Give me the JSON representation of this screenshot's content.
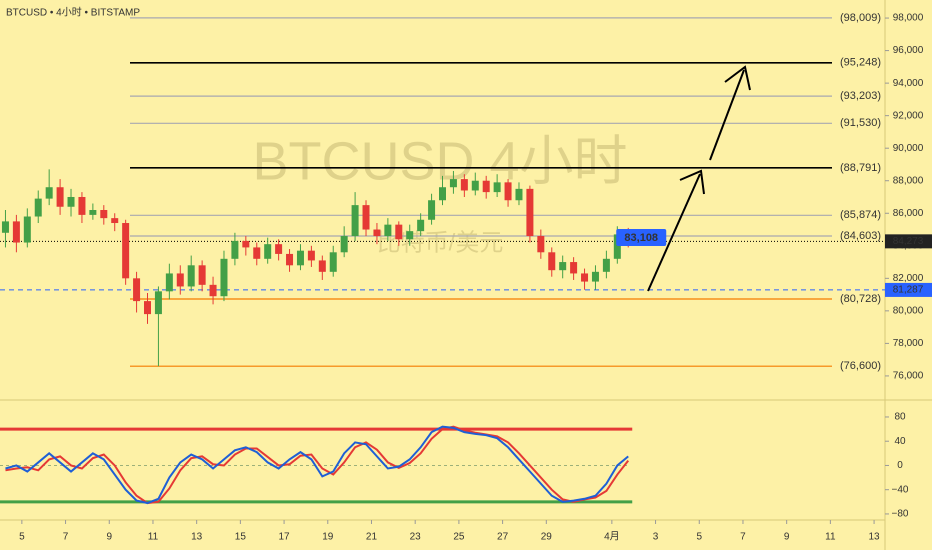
{
  "chart_data": [
    {
      "type": "candlestick",
      "title": "BTCUSD • 4小时 • BITSTAMP",
      "watermark": "BTCUSD 4小时",
      "watermark_sub": "比特币/美元",
      "up_color": "#43a047",
      "down_color": "#e53935",
      "xlim": [
        4,
        44.5
      ],
      "ylim": [
        74520,
        99110
      ],
      "yticks": [
        {
          "value": 76000,
          "label": "76,000"
        },
        {
          "value": 78000,
          "label": "78,000"
        },
        {
          "value": 80000,
          "label": "80,000"
        },
        {
          "value": 82000,
          "label": "82,000"
        },
        {
          "value": 84000,
          "label": "84,000"
        },
        {
          "value": 86000,
          "label": "86,000"
        },
        {
          "value": 88000,
          "label": "88,000"
        },
        {
          "value": 90000,
          "label": "90,000"
        },
        {
          "value": 92000,
          "label": "92,000"
        },
        {
          "value": 94000,
          "label": "94,000"
        },
        {
          "value": 96000,
          "label": "96,000"
        },
        {
          "value": 98000,
          "label": "98,000"
        }
      ],
      "levels": [
        {
          "value": 98009,
          "label": "(98,009)",
          "color": "#a8a8b0"
        },
        {
          "value": 95248,
          "label": "(95,248)",
          "color": "#000000"
        },
        {
          "value": 93203,
          "label": "(93,203)",
          "color": "#a8a8b0"
        },
        {
          "value": 91530,
          "label": "(91,530)",
          "color": "#a8a8b0"
        },
        {
          "value": 88791,
          "label": "(88,791)",
          "color": "#000000"
        },
        {
          "value": 85874,
          "label": "(85,874)",
          "color": "#a8a8b0"
        },
        {
          "value": 84603,
          "label": "(84,603)",
          "color": "#a8a8b0"
        },
        {
          "value": 80728,
          "label": "(80,728)",
          "color": "#f57c00"
        },
        {
          "value": 76600,
          "label": "(76,600)",
          "color": "#f57c00"
        }
      ],
      "last_price": {
        "value": 84273,
        "label": "84,273"
      },
      "marked_price": {
        "value": 81287,
        "label": "81,287"
      },
      "callout": {
        "value": 83108,
        "label": "83,108"
      },
      "x": [
        4.25,
        4.75,
        5.25,
        5.75,
        6.25,
        6.75,
        7.25,
        7.75,
        8.25,
        8.75,
        9.25,
        9.75,
        10.25,
        10.75,
        11.25,
        11.75,
        12.25,
        12.75,
        13.25,
        13.75,
        14.25,
        14.75,
        15.25,
        15.75,
        16.25,
        16.75,
        17.25,
        17.75,
        18.25,
        18.75,
        19.25,
        19.75,
        20.25,
        20.75,
        21.25,
        21.75,
        22.25,
        22.75,
        23.25,
        23.75,
        24.25,
        24.75,
        25.25,
        25.75,
        26.25,
        26.75,
        27.25,
        27.75,
        28.25,
        28.75,
        29.25,
        29.75,
        30.25,
        30.75,
        31.25,
        31.75,
        32.25,
        32.75
      ],
      "open": [
        84800,
        85500,
        84200,
        85800,
        86900,
        87600,
        86400,
        87000,
        85900,
        86200,
        85700,
        85400,
        82000,
        80600,
        79800,
        81200,
        82300,
        81500,
        82800,
        81600,
        80900,
        83200,
        84300,
        83900,
        83200,
        84100,
        83500,
        82800,
        83700,
        83100,
        82400,
        83600,
        84600,
        86500,
        85000,
        84600,
        85300,
        84400,
        84900,
        85600,
        86800,
        87600,
        88100,
        87400,
        88000,
        87300,
        87900,
        86800,
        87500,
        84600,
        83600,
        82500,
        83000,
        82300,
        81800,
        82400,
        83200,
        84700
      ],
      "high": [
        86200,
        85900,
        86300,
        87400,
        88700,
        88100,
        87500,
        87300,
        86600,
        86500,
        86000,
        85600,
        82400,
        81100,
        81500,
        82900,
        82800,
        83400,
        83100,
        82100,
        83700,
        84800,
        84600,
        84200,
        84500,
        84400,
        83800,
        84100,
        84000,
        83400,
        84000,
        85200,
        87300,
        86800,
        85400,
        85700,
        85500,
        85300,
        86000,
        87200,
        88300,
        88600,
        88400,
        88500,
        88300,
        88400,
        88100,
        87900,
        87700,
        85000,
        83900,
        83400,
        83300,
        82600,
        82800,
        83700,
        85200,
        85100
      ],
      "low": [
        83900,
        83600,
        83900,
        85400,
        86500,
        85900,
        85800,
        85400,
        85600,
        85300,
        84900,
        81600,
        79900,
        79200,
        76600,
        80700,
        81000,
        81200,
        81200,
        80400,
        80600,
        82800,
        83400,
        82800,
        82900,
        83100,
        82400,
        82500,
        82700,
        81900,
        82100,
        83300,
        84300,
        84600,
        84100,
        84300,
        84000,
        84000,
        84600,
        85300,
        86500,
        87200,
        87000,
        87100,
        86900,
        87000,
        86400,
        86500,
        84200,
        83200,
        82100,
        82000,
        81900,
        81300,
        81300,
        82000,
        82900,
        83900
      ],
      "close": [
        85500,
        84200,
        85800,
        86900,
        87600,
        86400,
        87000,
        85900,
        86200,
        85700,
        85400,
        82000,
        80600,
        79800,
        81200,
        82300,
        81500,
        82800,
        81600,
        80900,
        83200,
        84300,
        83900,
        83200,
        84100,
        83500,
        82800,
        83700,
        83100,
        82400,
        83600,
        84600,
        86500,
        85000,
        84600,
        85300,
        84400,
        84900,
        85600,
        86800,
        87600,
        88100,
        87400,
        88000,
        87300,
        87900,
        86800,
        87500,
        84600,
        83600,
        82500,
        83000,
        82300,
        81800,
        82400,
        83200,
        84700,
        84273
      ]
    },
    {
      "type": "line",
      "xlim": [
        4,
        44.5
      ],
      "ylim": [
        -90,
        108
      ],
      "xticks": [
        5,
        7,
        9,
        11,
        13,
        15,
        17,
        19,
        21,
        23,
        25,
        27,
        29,
        {
          "value": 32,
          "label": "4月"
        },
        {
          "value": 34,
          "label": "3"
        },
        {
          "value": 36,
          "label": "5"
        },
        {
          "value": 38,
          "label": "7"
        },
        {
          "value": 40,
          "label": "9"
        },
        {
          "value": 42,
          "label": "11"
        },
        {
          "value": 44,
          "label": "13"
        }
      ],
      "yticks": [
        80,
        40,
        0,
        {
          "value": -40,
          "label": "−40"
        },
        {
          "value": -80,
          "label": "−80"
        }
      ],
      "bands": [
        {
          "value": 60,
          "color": "#e53935"
        },
        {
          "value": -60,
          "color": "#43a047"
        }
      ],
      "x": [
        4.25,
        4.75,
        5.25,
        5.75,
        6.25,
        6.75,
        7.25,
        7.75,
        8.25,
        8.75,
        9.25,
        9.75,
        10.25,
        10.75,
        11.25,
        11.75,
        12.25,
        12.75,
        13.25,
        13.75,
        14.25,
        14.75,
        15.25,
        15.75,
        16.25,
        16.75,
        17.25,
        17.75,
        18.25,
        18.75,
        19.25,
        19.75,
        20.25,
        20.75,
        21.25,
        21.75,
        22.25,
        22.75,
        23.25,
        23.75,
        24.25,
        24.75,
        25.25,
        25.75,
        26.25,
        26.75,
        27.25,
        27.75,
        28.25,
        28.75,
        29.25,
        29.75,
        30.25,
        30.75,
        31.25,
        31.75,
        32.25,
        32.75
      ],
      "series": [
        {
          "color": "#e53935",
          "values": [
            -8,
            -5,
            -3,
            -8,
            10,
            15,
            0,
            -5,
            12,
            18,
            0,
            -28,
            -50,
            -62,
            -60,
            -38,
            -8,
            12,
            15,
            2,
            0,
            18,
            28,
            28,
            14,
            0,
            2,
            16,
            18,
            -5,
            -15,
            5,
            30,
            38,
            26,
            5,
            -4,
            4,
            20,
            44,
            60,
            64,
            58,
            54,
            51,
            48,
            38,
            20,
            0,
            -20,
            -40,
            -56,
            -60,
            -56,
            -53,
            -42,
            -15,
            8
          ]
        },
        {
          "color": "#1e5fd6",
          "values": [
            -5,
            0,
            -10,
            5,
            20,
            5,
            -10,
            5,
            20,
            10,
            -15,
            -40,
            -58,
            -62,
            -55,
            -20,
            5,
            18,
            10,
            -5,
            10,
            25,
            30,
            22,
            5,
            -5,
            10,
            22,
            10,
            -18,
            -10,
            20,
            38,
            35,
            15,
            -5,
            -2,
            10,
            30,
            55,
            64,
            62,
            55,
            52,
            50,
            45,
            30,
            10,
            -10,
            -30,
            -50,
            -60,
            -58,
            -55,
            -50,
            -30,
            0,
            15
          ]
        }
      ]
    }
  ]
}
